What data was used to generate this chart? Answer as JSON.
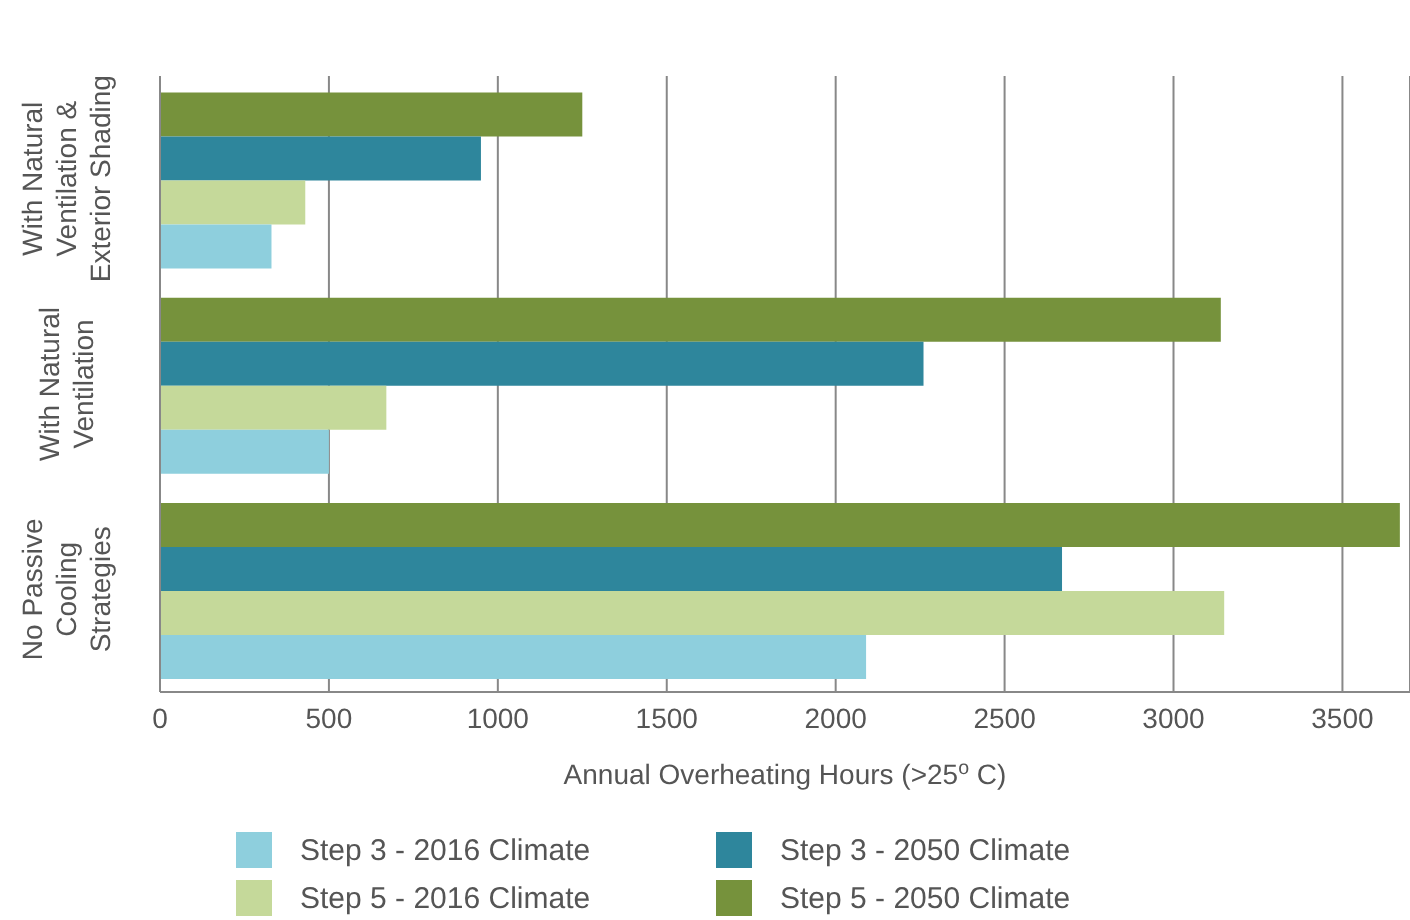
{
  "chart_data": {
    "type": "bar",
    "orientation": "horizontal",
    "xlabel": "Annual Overheating Hours (>25$^{o}$ C)",
    "categories": [
      "With Natural Ventilation & Exterior Shading",
      "With Natural Ventilation",
      "No Passive Cooling Strategies"
    ],
    "series": [
      {
        "name": "Step 3 - 2016 Climate",
        "color": "#8ecfdd",
        "values": [
          330,
          500,
          2090
        ]
      },
      {
        "name": "Step 5 - 2016 Climate",
        "color": "#c5d99a",
        "values": [
          430,
          670,
          3150
        ]
      },
      {
        "name": "Step 3 - 2050 Climate",
        "color": "#2e869c",
        "values": [
          950,
          2260,
          2670
        ]
      },
      {
        "name": "Step 5 - 2050 Climate",
        "color": "#76923c",
        "values": [
          1250,
          3140,
          3670
        ]
      }
    ],
    "xlim": [
      0,
      3700
    ],
    "xticks": [
      0,
      500,
      1000,
      1500,
      2000,
      2500,
      3000,
      3500
    ],
    "grid": "x",
    "legend": "bottom"
  }
}
